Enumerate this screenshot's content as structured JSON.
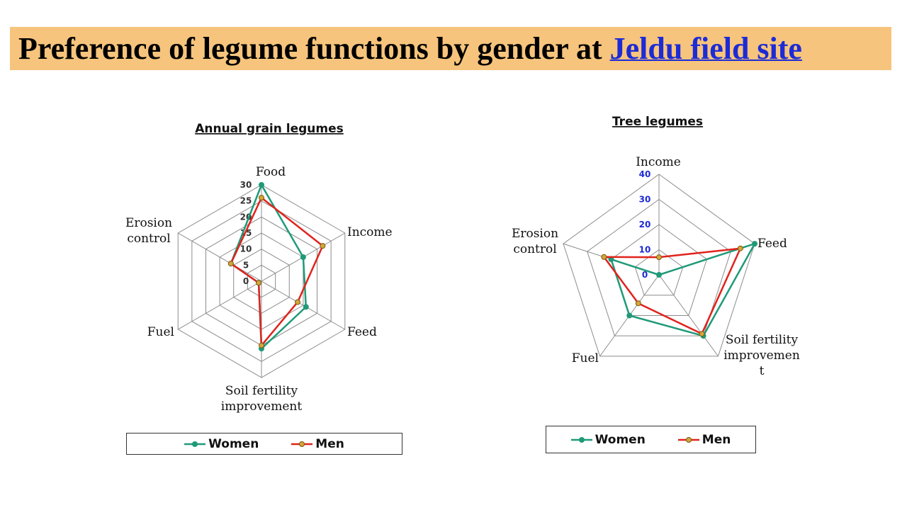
{
  "header": {
    "title_prefix": "Preference of legume functions by gender at ",
    "title_link": "Jeldu field site"
  },
  "colors": {
    "women": "#1f9a78",
    "men": "#e0231c",
    "marker_fill": "#d4a53a",
    "grid": "#8c8c8c",
    "header_bg": "#f6c47c",
    "tick_left": "#333333",
    "tick_right": "#1d2bd6"
  },
  "chart_data": [
    {
      "type": "radar",
      "title": "Annual grain legumes",
      "categories": [
        "Food",
        "Income",
        "Feed",
        "Soil fertility improvement",
        "Fuel",
        "Erosion control"
      ],
      "category_lines": [
        [
          "Food"
        ],
        [
          "Income"
        ],
        [
          "Feed"
        ],
        [
          "Soil fertility",
          "improvement"
        ],
        [
          "Fuel"
        ],
        [
          "Erosion",
          "control"
        ]
      ],
      "rlim": [
        0,
        30
      ],
      "ticks": [
        "0",
        "5",
        "10",
        "15",
        "20",
        "25",
        "30"
      ],
      "series": [
        {
          "name": "Women",
          "values": [
            30,
            15,
            16,
            21,
            1,
            11
          ]
        },
        {
          "name": "Men",
          "values": [
            26,
            22,
            13,
            20,
            1,
            11
          ]
        }
      ],
      "legend": "bottom"
    },
    {
      "type": "radar",
      "title": "Tree legumes",
      "categories": [
        "Income",
        "Feed",
        "Soil fertility improvement",
        "Fuel",
        "Erosion control"
      ],
      "category_lines": [
        [
          "Income"
        ],
        [
          "Feed"
        ],
        [
          "Soil fertility",
          "improvemen",
          "t"
        ],
        [
          "Fuel"
        ],
        [
          "Erosion",
          "control"
        ]
      ],
      "rlim": [
        0,
        40
      ],
      "ticks": [
        "0",
        "10",
        "20",
        "30",
        "40"
      ],
      "series": [
        {
          "name": "Women",
          "values": [
            0,
            40,
            30,
            20,
            20
          ]
        },
        {
          "name": "Men",
          "values": [
            7,
            34,
            29,
            14,
            23
          ]
        }
      ],
      "legend": "bottom"
    }
  ]
}
